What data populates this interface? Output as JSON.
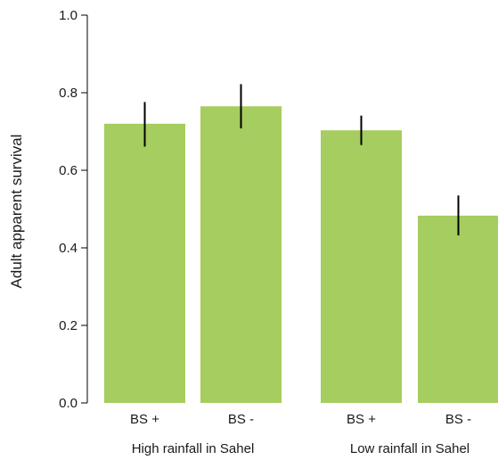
{
  "chart_data": {
    "type": "bar",
    "ylabel": "Adult apparent survival",
    "ylim": [
      0,
      1
    ],
    "yticks": [
      "0.0",
      "0.2",
      "0.4",
      "0.6",
      "0.8",
      "1.0"
    ],
    "categories": [
      "BS +",
      "BS -",
      "BS +",
      "BS -"
    ],
    "values": [
      0.72,
      0.765,
      0.703,
      0.483
    ],
    "error_low": [
      0.661,
      0.708,
      0.665,
      0.432
    ],
    "error_high": [
      0.776,
      0.822,
      0.741,
      0.535
    ],
    "groups": [
      {
        "label": "High rainfall in Sahel",
        "categories": [
          0,
          1
        ]
      },
      {
        "label": "Low rainfall in Sahel",
        "categories": [
          2,
          3
        ]
      }
    ],
    "bar_color": "#a5cd5f",
    "error_color": "#000000",
    "grid": false,
    "legend": "none"
  }
}
